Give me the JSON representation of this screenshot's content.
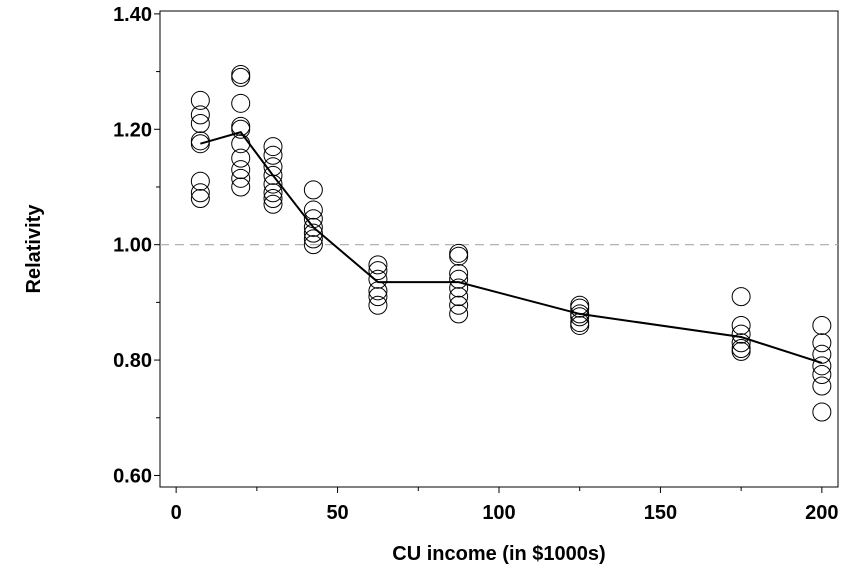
{
  "chart_data": {
    "type": "scatter",
    "xlabel": "CU income (in $1000s)",
    "ylabel": "Relativity",
    "xlim": [
      -5,
      205
    ],
    "ylim": [
      0.58,
      1.405
    ],
    "x_ticks": [
      0,
      50,
      100,
      150,
      200
    ],
    "x_tick_labels": [
      "0",
      "50",
      "100",
      "150",
      "200"
    ],
    "y_ticks": [
      0.6,
      0.8,
      1.0,
      1.2,
      1.4
    ],
    "y_tick_labels": [
      "0.60",
      "0.80",
      "1.00",
      "1.20",
      "1.40"
    ],
    "reference_line": {
      "y": 1.0,
      "style": "dashed",
      "color": "#aaaaaa"
    },
    "grid": false,
    "points": [
      {
        "x": 7.5,
        "y": 1.25
      },
      {
        "x": 7.5,
        "y": 1.225
      },
      {
        "x": 7.5,
        "y": 1.21
      },
      {
        "x": 7.5,
        "y": 1.18
      },
      {
        "x": 7.5,
        "y": 1.175
      },
      {
        "x": 7.5,
        "y": 1.11
      },
      {
        "x": 7.5,
        "y": 1.09
      },
      {
        "x": 7.5,
        "y": 1.08
      },
      {
        "x": 20,
        "y": 1.295
      },
      {
        "x": 20,
        "y": 1.29
      },
      {
        "x": 20,
        "y": 1.245
      },
      {
        "x": 20,
        "y": 1.205
      },
      {
        "x": 20,
        "y": 1.2
      },
      {
        "x": 20,
        "y": 1.175
      },
      {
        "x": 20,
        "y": 1.15
      },
      {
        "x": 20,
        "y": 1.13
      },
      {
        "x": 20,
        "y": 1.115
      },
      {
        "x": 20,
        "y": 1.1
      },
      {
        "x": 30,
        "y": 1.17
      },
      {
        "x": 30,
        "y": 1.155
      },
      {
        "x": 30,
        "y": 1.135
      },
      {
        "x": 30,
        "y": 1.12
      },
      {
        "x": 30,
        "y": 1.105
      },
      {
        "x": 30,
        "y": 1.09
      },
      {
        "x": 30,
        "y": 1.08
      },
      {
        "x": 30,
        "y": 1.07
      },
      {
        "x": 42.5,
        "y": 1.095
      },
      {
        "x": 42.5,
        "y": 1.06
      },
      {
        "x": 42.5,
        "y": 1.045
      },
      {
        "x": 42.5,
        "y": 1.03
      },
      {
        "x": 42.5,
        "y": 1.02
      },
      {
        "x": 42.5,
        "y": 1.01
      },
      {
        "x": 42.5,
        "y": 1.0
      },
      {
        "x": 62.5,
        "y": 0.965
      },
      {
        "x": 62.5,
        "y": 0.955
      },
      {
        "x": 62.5,
        "y": 0.94
      },
      {
        "x": 62.5,
        "y": 0.92
      },
      {
        "x": 62.5,
        "y": 0.91
      },
      {
        "x": 62.5,
        "y": 0.895
      },
      {
        "x": 87.5,
        "y": 0.985
      },
      {
        "x": 87.5,
        "y": 0.98
      },
      {
        "x": 87.5,
        "y": 0.95
      },
      {
        "x": 87.5,
        "y": 0.94
      },
      {
        "x": 87.5,
        "y": 0.925
      },
      {
        "x": 87.5,
        "y": 0.91
      },
      {
        "x": 87.5,
        "y": 0.895
      },
      {
        "x": 87.5,
        "y": 0.88
      },
      {
        "x": 125,
        "y": 0.895
      },
      {
        "x": 125,
        "y": 0.89
      },
      {
        "x": 125,
        "y": 0.88
      },
      {
        "x": 125,
        "y": 0.875
      },
      {
        "x": 125,
        "y": 0.865
      },
      {
        "x": 125,
        "y": 0.86
      },
      {
        "x": 175,
        "y": 0.91
      },
      {
        "x": 175,
        "y": 0.86
      },
      {
        "x": 175,
        "y": 0.845
      },
      {
        "x": 175,
        "y": 0.83
      },
      {
        "x": 175,
        "y": 0.82
      },
      {
        "x": 175,
        "y": 0.815
      },
      {
        "x": 200,
        "y": 0.86
      },
      {
        "x": 200,
        "y": 0.83
      },
      {
        "x": 200,
        "y": 0.81
      },
      {
        "x": 200,
        "y": 0.79
      },
      {
        "x": 200,
        "y": 0.775
      },
      {
        "x": 200,
        "y": 0.755
      },
      {
        "x": 200,
        "y": 0.71
      }
    ],
    "line": {
      "x": [
        7.5,
        20,
        30,
        42.5,
        62.5,
        87.5,
        125,
        175,
        200
      ],
      "y": [
        1.175,
        1.195,
        1.12,
        1.03,
        0.935,
        0.935,
        0.88,
        0.84,
        0.795
      ]
    },
    "colors": {
      "axis": "#000000",
      "marker": "#000000",
      "line": "#000000",
      "reference": "#aaaaaa"
    }
  }
}
